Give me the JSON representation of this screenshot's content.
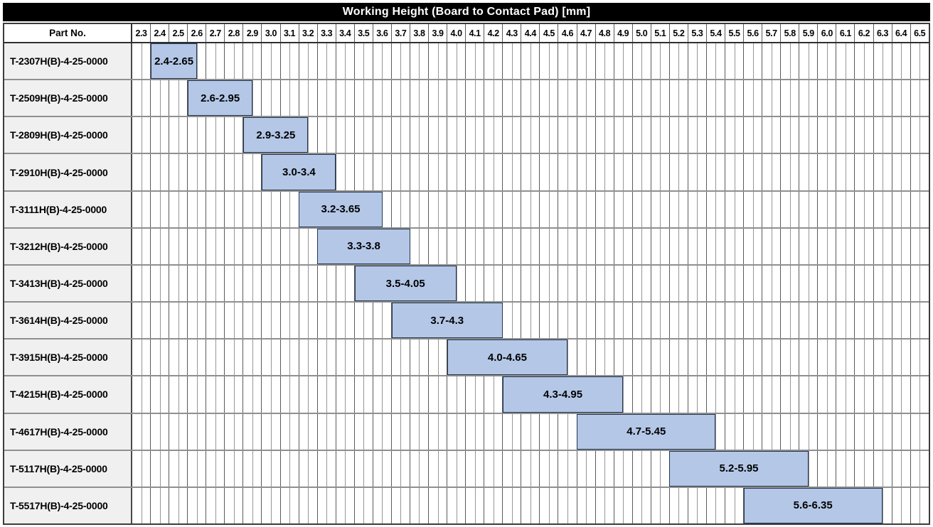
{
  "header": {
    "part_no_label": "Part No."
  },
  "colors": {
    "title_bg": "#000000",
    "title_text": "#ffffff",
    "bar_fill": "#b4c7e7",
    "bar_border": "#24364e",
    "label_cell_bg": "#f0f0f0",
    "grid_major": "#5a5a5a",
    "grid_minor": "#969696",
    "row_separator": "#8f8f8f"
  },
  "chart_data": {
    "type": "bar",
    "subtype": "horizontal-range",
    "title": "Working Height (Board to Contact Pad) [mm]",
    "legend": "none",
    "grid": "on",
    "x_axis": {
      "min": 2.3,
      "max": 6.6,
      "major_step": 0.1,
      "minor_step": 0.05,
      "tick_labels": [
        "2.3",
        "2.4",
        "2.5",
        "2.6",
        "2.7",
        "2.8",
        "2.9",
        "3.0",
        "3.1",
        "3.2",
        "3.3",
        "3.4",
        "3.5",
        "3.6",
        "3.7",
        "3.8",
        "3.9",
        "4.0",
        "4.1",
        "4.2",
        "4.3",
        "4.4",
        "4.5",
        "4.6",
        "4.7",
        "4.8",
        "4.9",
        "5.0",
        "5.1",
        "5.2",
        "5.3",
        "5.4",
        "5.5",
        "5.6",
        "5.7",
        "5.8",
        "5.9",
        "6.0",
        "6.1",
        "6.2",
        "6.3",
        "6.4",
        "6.5"
      ]
    },
    "categories": [
      "T-2307H(B)-4-25-0000",
      "T-2509H(B)-4-25-0000",
      "T-2809H(B)-4-25-0000",
      "T-2910H(B)-4-25-0000",
      "T-3111H(B)-4-25-0000",
      "T-3212H(B)-4-25-0000",
      "T-3413H(B)-4-25-0000",
      "T-3614H(B)-4-25-0000",
      "T-3915H(B)-4-25-0000",
      "T-4215H(B)-4-25-0000",
      "T-4617H(B)-4-25-0000",
      "T-5117H(B)-4-25-0000",
      "T-5517H(B)-4-25-0000"
    ],
    "rows": [
      {
        "part_no": "T-2307H(B)-4-25-0000",
        "start": 2.4,
        "end": 2.65,
        "label": "2.4-2.65"
      },
      {
        "part_no": "T-2509H(B)-4-25-0000",
        "start": 2.6,
        "end": 2.95,
        "label": "2.6-2.95"
      },
      {
        "part_no": "T-2809H(B)-4-25-0000",
        "start": 2.9,
        "end": 3.25,
        "label": "2.9-3.25"
      },
      {
        "part_no": "T-2910H(B)-4-25-0000",
        "start": 3.0,
        "end": 3.4,
        "label": "3.0-3.4"
      },
      {
        "part_no": "T-3111H(B)-4-25-0000",
        "start": 3.2,
        "end": 3.65,
        "label": "3.2-3.65"
      },
      {
        "part_no": "T-3212H(B)-4-25-0000",
        "start": 3.3,
        "end": 3.8,
        "label": "3.3-3.8"
      },
      {
        "part_no": "T-3413H(B)-4-25-0000",
        "start": 3.5,
        "end": 4.05,
        "label": "3.5-4.05"
      },
      {
        "part_no": "T-3614H(B)-4-25-0000",
        "start": 3.7,
        "end": 4.3,
        "label": "3.7-4.3"
      },
      {
        "part_no": "T-3915H(B)-4-25-0000",
        "start": 4.0,
        "end": 4.65,
        "label": "4.0-4.65"
      },
      {
        "part_no": "T-4215H(B)-4-25-0000",
        "start": 4.3,
        "end": 4.95,
        "label": "4.3-4.95"
      },
      {
        "part_no": "T-4617H(B)-4-25-0000",
        "start": 4.7,
        "end": 5.45,
        "label": "4.7-5.45"
      },
      {
        "part_no": "T-5117H(B)-4-25-0000",
        "start": 5.2,
        "end": 5.95,
        "label": "5.2-5.95"
      },
      {
        "part_no": "T-5517H(B)-4-25-0000",
        "start": 5.6,
        "end": 6.35,
        "label": "5.6-6.35"
      }
    ]
  }
}
